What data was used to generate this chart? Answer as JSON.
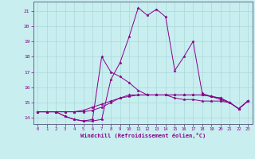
{
  "bg_color": "#c8eef0",
  "grid_color": "#aad8da",
  "line_color": "#880088",
  "xlabel": "Windchill (Refroidissement éolien,°C)",
  "ylabel_ticks": [
    14,
    15,
    16,
    17,
    18,
    19,
    20,
    21
  ],
  "xtick_labels": [
    "0",
    "1",
    "2",
    "3",
    "4",
    "5",
    "6",
    "7",
    "8",
    "9",
    "10",
    "11",
    "12",
    "13",
    "14",
    "15",
    "16",
    "17",
    "18",
    "19",
    "20",
    "21",
    "22",
    "23"
  ],
  "xlim": [
    -0.5,
    23.5
  ],
  "ylim": [
    13.6,
    21.6
  ],
  "series": [
    [
      14.4,
      14.4,
      14.4,
      14.4,
      14.4,
      14.5,
      14.7,
      14.9,
      15.1,
      15.3,
      15.4,
      15.5,
      15.5,
      15.5,
      15.5,
      15.5,
      15.5,
      15.5,
      15.5,
      15.4,
      15.3,
      15.0,
      14.6,
      15.1
    ],
    [
      14.4,
      14.4,
      14.4,
      14.1,
      13.9,
      13.8,
      13.8,
      13.9,
      16.5,
      17.6,
      19.3,
      21.2,
      20.7,
      21.1,
      20.6,
      17.1,
      18.0,
      19.0,
      15.6,
      15.4,
      15.2,
      15.0,
      14.6,
      15.1
    ],
    [
      14.4,
      14.4,
      14.4,
      14.1,
      13.9,
      13.8,
      13.9,
      18.0,
      17.0,
      16.7,
      16.3,
      15.8,
      15.5,
      15.5,
      15.5,
      15.3,
      15.2,
      15.2,
      15.1,
      15.1,
      15.1,
      15.0,
      14.6,
      15.1
    ],
    [
      14.4,
      14.4,
      14.4,
      14.4,
      14.4,
      14.4,
      14.5,
      14.7,
      15.0,
      15.3,
      15.5,
      15.5,
      15.5,
      15.5,
      15.5,
      15.5,
      15.5,
      15.5,
      15.5,
      15.4,
      15.3,
      15.0,
      14.6,
      15.1
    ]
  ]
}
